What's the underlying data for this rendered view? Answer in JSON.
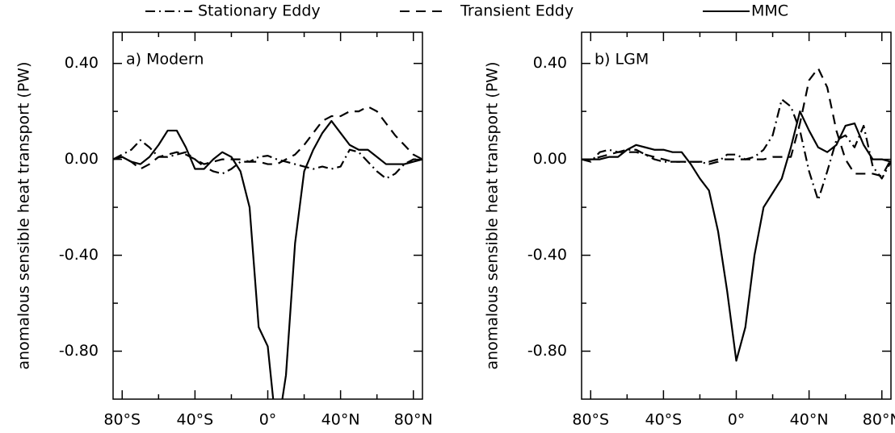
{
  "chart_data": [
    {
      "type": "line",
      "title": "a) Modern",
      "y_label": "anomalous sensible heat transport (PW)",
      "x": [
        -85,
        -80,
        -75,
        -70,
        -65,
        -60,
        -55,
        -50,
        -45,
        -40,
        -35,
        -30,
        -25,
        -20,
        -15,
        -10,
        -5,
        0,
        5,
        10,
        15,
        20,
        25,
        30,
        35,
        40,
        45,
        50,
        55,
        60,
        65,
        70,
        75,
        80,
        85
      ],
      "xlim": [
        -85,
        85
      ],
      "xticks": [
        {
          "value": -80,
          "label": "80°S"
        },
        {
          "value": -40,
          "label": "40°S"
        },
        {
          "value": 0,
          "label": "0°"
        },
        {
          "value": 40,
          "label": "40°N"
        },
        {
          "value": 80,
          "label": "80°N"
        }
      ],
      "xminor": [
        -60,
        -20,
        20,
        60
      ],
      "ylim": [
        -1.0,
        0.53
      ],
      "yticks": [
        {
          "value": 0.4,
          "label": "0.40"
        },
        {
          "value": 0,
          "label": "0.00"
        },
        {
          "value": -0.4,
          "label": "-0.40"
        },
        {
          "value": -0.8,
          "label": "-0.80"
        }
      ],
      "yminor": [
        0.2,
        -0.2,
        -0.6
      ],
      "series": [
        {
          "name": "Stationary Eddy",
          "color": "#000000",
          "linestyle": "dashdot",
          "values": [
            0,
            0.02,
            0.04,
            0.08,
            0.05,
            0.01,
            0.01,
            0.02,
            0.03,
            0.0,
            -0.03,
            -0.05,
            -0.06,
            -0.04,
            -0.01,
            -0.01,
            0.01,
            0.015,
            0,
            -0.01,
            -0.02,
            -0.03,
            -0.04,
            -0.03,
            -0.04,
            -0.03,
            0.04,
            0.03,
            -0.01,
            -0.05,
            -0.08,
            -0.06,
            -0.02,
            0,
            0
          ]
        },
        {
          "name": "Transient Eddy",
          "color": "#000000",
          "linestyle": "dashed",
          "values": [
            0,
            0.01,
            -0.01,
            -0.04,
            -0.02,
            0.01,
            0.02,
            0.03,
            0.02,
            0.0,
            -0.02,
            -0.01,
            0,
            0,
            0,
            -0.01,
            -0.01,
            -0.02,
            -0.02,
            0,
            0.02,
            0.06,
            0.11,
            0.16,
            0.18,
            0.18,
            0.2,
            0.2,
            0.22,
            0.2,
            0.15,
            0.1,
            0.06,
            0.02,
            0
          ]
        },
        {
          "name": "MMC",
          "color": "#000000",
          "linestyle": "solid",
          "values": [
            0,
            0.01,
            -0.01,
            -0.02,
            0.01,
            0.06,
            0.12,
            0.12,
            0.05,
            -0.04,
            -0.04,
            0.0,
            0.03,
            0.01,
            -0.05,
            -0.2,
            -0.7,
            -0.78,
            -1.15,
            -0.9,
            -0.35,
            -0.05,
            0.04,
            0.11,
            0.16,
            0.11,
            0.06,
            0.04,
            0.04,
            0.01,
            -0.02,
            -0.02,
            -0.02,
            -0.01,
            0
          ]
        }
      ]
    },
    {
      "type": "line",
      "title": "b) LGM",
      "y_label": "anomalous sensible heat transport (PW)",
      "x": [
        -85,
        -80,
        -75,
        -70,
        -65,
        -60,
        -55,
        -50,
        -45,
        -40,
        -35,
        -30,
        -25,
        -20,
        -15,
        -10,
        -5,
        0,
        5,
        10,
        15,
        20,
        25,
        30,
        35,
        40,
        45,
        50,
        55,
        60,
        65,
        70,
        75,
        80,
        85
      ],
      "xlim": [
        -85,
        85
      ],
      "xticks": [
        {
          "value": -80,
          "label": "80°S"
        },
        {
          "value": -40,
          "label": "40°S"
        },
        {
          "value": 0,
          "label": "0°"
        },
        {
          "value": 40,
          "label": "40°N"
        },
        {
          "value": 80,
          "label": "80°N"
        }
      ],
      "xminor": [
        -60,
        -20,
        20,
        60
      ],
      "ylim": [
        -1.0,
        0.53
      ],
      "yticks": [
        {
          "value": 0.4,
          "label": "0.40"
        },
        {
          "value": 0,
          "label": "0.00"
        },
        {
          "value": -0.4,
          "label": "-0.40"
        },
        {
          "value": -0.8,
          "label": "-0.80"
        }
      ],
      "yminor": [
        0.2,
        -0.2,
        -0.6
      ],
      "series": [
        {
          "name": "Stationary Eddy",
          "color": "#000000",
          "linestyle": "dashdot",
          "values": [
            0,
            -0.01,
            0.03,
            0.04,
            0.03,
            0.04,
            0.04,
            0.02,
            0.0,
            -0.01,
            -0.01,
            -0.01,
            -0.01,
            -0.01,
            -0.02,
            -0.01,
            0.02,
            0.02,
            0.0,
            0.01,
            0.04,
            0.1,
            0.25,
            0.22,
            0.12,
            -0.05,
            -0.17,
            -0.05,
            0.08,
            0.1,
            0.05,
            0.14,
            -0.03,
            -0.08,
            -0.01
          ]
        },
        {
          "name": "Transient Eddy",
          "color": "#000000",
          "linestyle": "dashed",
          "values": [
            0,
            0,
            0.01,
            0.02,
            0.03,
            0.03,
            0.03,
            0.02,
            0.01,
            0,
            -0.01,
            -0.01,
            -0.01,
            -0.01,
            -0.01,
            0,
            0,
            0,
            0,
            0,
            0,
            0.01,
            0.01,
            0.01,
            0.15,
            0.33,
            0.38,
            0.3,
            0.12,
            0.0,
            -0.06,
            -0.06,
            -0.06,
            -0.07,
            0
          ]
        },
        {
          "name": "MMC",
          "color": "#000000",
          "linestyle": "solid",
          "values": [
            0,
            0,
            0,
            0.01,
            0.01,
            0.04,
            0.06,
            0.05,
            0.04,
            0.04,
            0.03,
            0.03,
            -0.02,
            -0.08,
            -0.13,
            -0.3,
            -0.55,
            -0.84,
            -0.7,
            -0.4,
            -0.2,
            -0.14,
            -0.08,
            0.05,
            0.2,
            0.12,
            0.05,
            0.03,
            0.06,
            0.14,
            0.15,
            0.06,
            0.0,
            0.0,
            -0.01
          ]
        }
      ]
    }
  ]
}
